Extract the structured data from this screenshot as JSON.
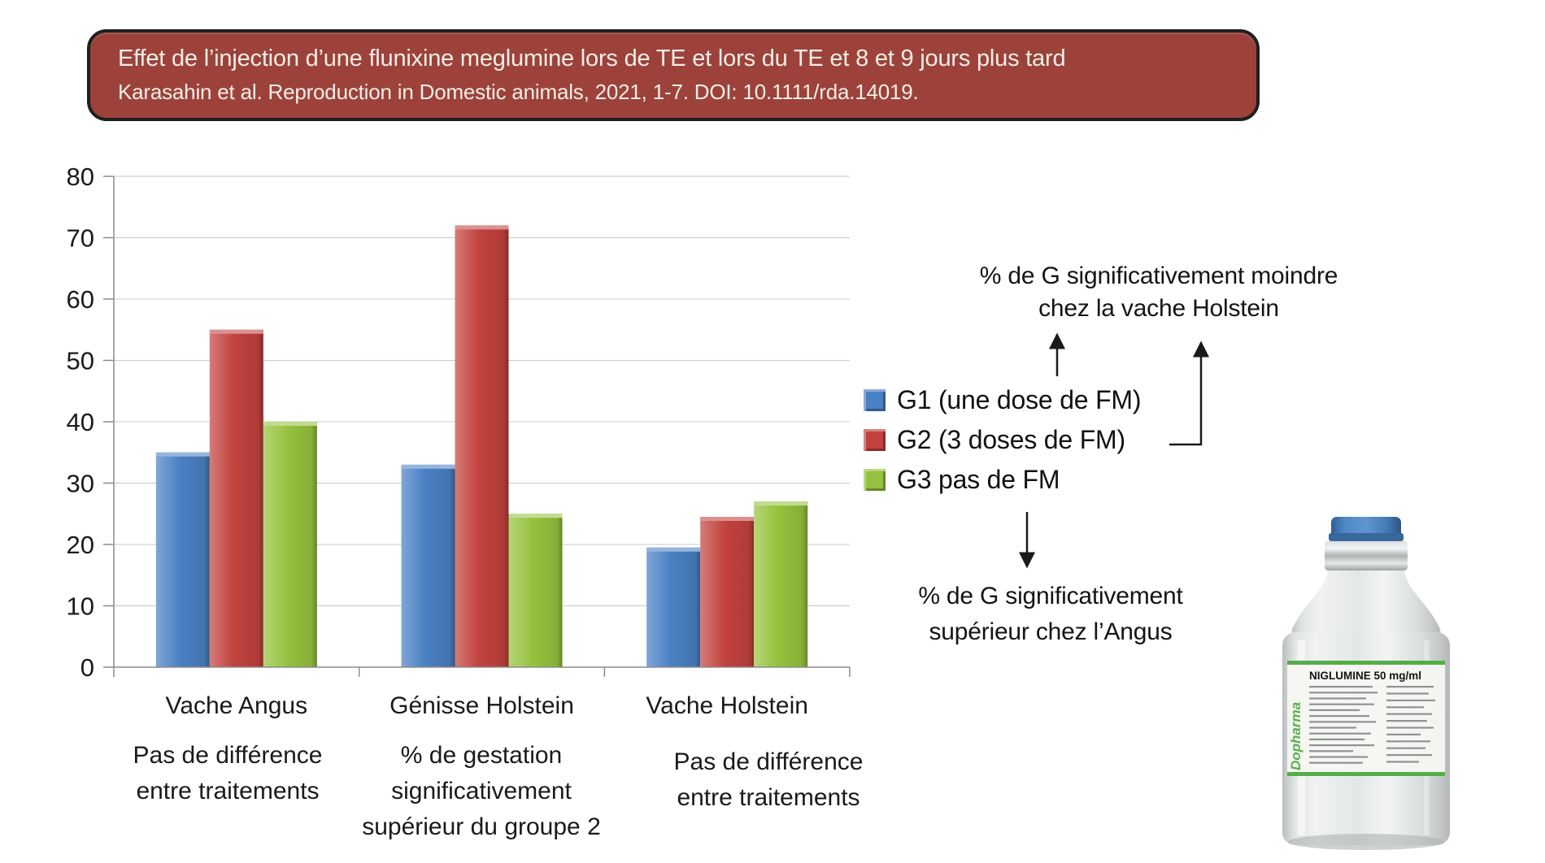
{
  "slide": {
    "title": "Effet de l’injection d’une flunixine meglumine lors de TE et lors du TE et 8 et 9 jours plus tard",
    "subtitle": "Karasahin et al. Reproduction in Domestic animals, 2021, 1-7. DOI: 10.1111/rda.14019.",
    "title_bg": "#9C423B",
    "title_text_color": "#F2EEE6"
  },
  "chart_data": {
    "type": "bar",
    "title": "",
    "xlabel": "",
    "ylabel": "",
    "categories": [
      "Vache Angus",
      "Génisse Holstein",
      "Vache Holstein"
    ],
    "series": [
      {
        "name": "G1 (une dose de FM)",
        "color": "#4A80C4",
        "values": [
          35,
          33,
          19.5
        ]
      },
      {
        "name": "G2 (3 doses de FM)",
        "color": "#C2423E",
        "values": [
          55,
          72,
          24.5
        ]
      },
      {
        "name": "G3 pas de FM",
        "color": "#95C23D",
        "values": [
          40,
          25,
          27
        ]
      }
    ],
    "ylim": [
      0,
      80
    ],
    "ytick_step": 10,
    "yticks": [
      0,
      10,
      20,
      30,
      40,
      50,
      60,
      70,
      80
    ],
    "grid": true,
    "legend_position": "right",
    "gridline_color": "#C9C9C9",
    "axis_color": "#8C8C8C",
    "tick_label_color": "#1a1a1a"
  },
  "annotations": {
    "top": "% de G significativement moindre\nchez la vache Holstein",
    "bottom": "% de G significativement\nsupérieur chez l’Angus"
  },
  "captions": [
    "Pas de différence\nentre traitements",
    "% de gestation\nsignificativement\nsupérieur du groupe 2",
    "Pas de différence\nentre traitements"
  ],
  "vial": {
    "brand": "Dopharma",
    "product": "NIGLUMINE 50 mg/ml"
  }
}
